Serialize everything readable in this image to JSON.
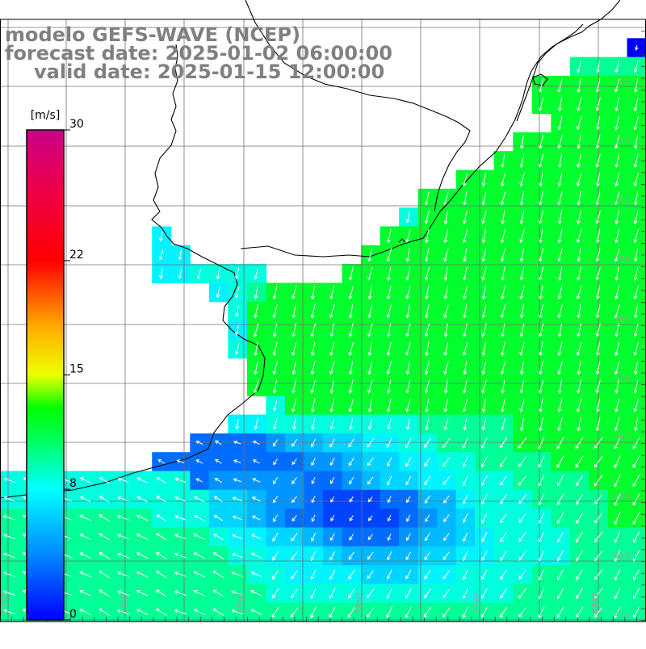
{
  "titles": {
    "line1": "modelo GEFS-WAVE (NCEP)",
    "line2": "forecast date: 2025-01-02 06:00:00",
    "line3": "valid date: 2025-01-15 12:00:00"
  },
  "colorbar": {
    "unit": "[m/s]",
    "min": 0,
    "max": 30,
    "ticks": [
      {
        "value": 0,
        "label": "0"
      },
      {
        "value": 8,
        "label": "8"
      },
      {
        "value": 15,
        "label": "15"
      },
      {
        "value": 22,
        "label": "22"
      },
      {
        "value": 30,
        "label": "30"
      }
    ],
    "stops": [
      {
        "value": 0,
        "color": "#0000ff"
      },
      {
        "value": 4,
        "color": "#0088ff"
      },
      {
        "value": 8,
        "color": "#00ffff"
      },
      {
        "value": 11.5,
        "color": "#00ff44"
      },
      {
        "value": 13,
        "color": "#00ff00"
      },
      {
        "value": 15,
        "color": "#eeff00"
      },
      {
        "value": 18,
        "color": "#ffaa00"
      },
      {
        "value": 22,
        "color": "#ff0000"
      },
      {
        "value": 26,
        "color": "#ee0044"
      },
      {
        "value": 30,
        "color": "#cc0088"
      }
    ]
  },
  "axes": {
    "lon_labels": [
      "61W",
      "59W",
      "57W",
      "55W",
      "53W",
      "51W",
      "49W"
    ],
    "lat_labels": [
      "32S",
      "33S",
      "34S",
      "35S",
      "36S",
      "37S",
      "38S",
      "39S",
      "40S",
      "41S"
    ]
  },
  "wind_field": {
    "land_mask": [
      "0000000000000000000000000000000000",
      "0000000000000000000000000000000001",
      "0000000000000000000000000000001111",
      "0000000000000000000000000000111111",
      "0000000000000000000000000000111111",
      "0000000000000000000000000000011111",
      "0000000000000000000000000001111111",
      "0000000000000000000000000011111111",
      "0000000000000000000000001111111111",
      "0000000000000000000000111111111111",
      "0000000000000000000001111111111111",
      "0000000010000000000011111111111111",
      "0000000011000000000111111111111111",
      "0000000011111100001111111111111111",
      "0000000000011111111111111111111111",
      "0000000000001111111111111111111111",
      "0000000000001111111111111111111111",
      "0000000000001111111111111111111111",
      "0000000000000111111111111111111111",
      "0000000000000111111111111111111111",
      "0000000000000011111111111111111111",
      "0000000000001111111111111111111111",
      "0000000000111111111111111111111111",
      "0000000011111111111111111111111111",
      "1111111111111111111111111111111111",
      "1111111111111111111111111111111111",
      "1111111111111111111111111111111111",
      "1111111111111111111111111111111111",
      "1111111111111111111111111111111111",
      "1111111111111111111111111111111111",
      "1111111111111111111111111111111111",
      "1111111111111111111111111111111111"
    ],
    "speed": [
      "0000000000000000000000000000000000",
      "0000000000000000000000000000000000",
      "0000000000000000000000000000008888",
      "0000000000000000000000000000999999",
      "0000000000000000000000000000999999",
      "0000000000000000000000000000099999",
      "0000000000000000000000000009999999",
      "0000000000000000000000000099999999",
      "0000000000000000000000009999999999",
      "0000000000000000000000999999999999",
      "0000000000000000000007999999999999",
      "0000000060000000000099999999999999",
      "0000000066000000000999999999999999",
      "0000000066777700009999999999999999",
      "0000000000067899999999999999999999",
      "0000000000007999999999999999999999",
      "0000000000006999999999999999999999",
      "0000000000007999999999999999999999",
      "0000000000000999999999999999999999",
      "0000000000000999999999999999999999",
      "0000000000000079999999999999999999",
      "0000000000006677777777888889999999",
      "0000000000222234455667788889999999",
      "0000000022222222334556677888899999",
      "7777777777233333223455667778888999",
      "7777777777755433211122446777888899",
      "8888888877755432211112345777788899",
      "8888888888876655432223445677778888",
      "8888888888887766654444556677778888",
      "8888888888888776666555667777888888",
      "8888888888888877777777777778888888",
      "8888888888888888888888888888888888"
    ],
    "speed_level_ms": [
      0,
      2.0,
      3.2,
      4.4,
      5.6,
      6.6,
      7.6,
      8.6,
      10.0,
      12.0
    ]
  },
  "coastline_features": [
    "lagoa-mirim",
    "rio-de-la-plata",
    "patos-lagoon"
  ]
}
